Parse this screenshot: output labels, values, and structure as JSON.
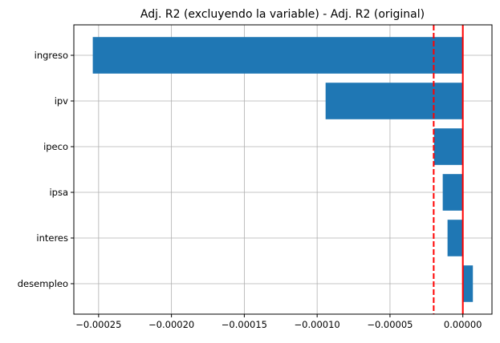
{
  "chart_data": {
    "type": "bar",
    "orientation": "horizontal",
    "title": "Adj. R2 (excluyendo la variable) - Adj. R2 (original)",
    "xlabel": "",
    "ylabel": "",
    "categories": [
      "ingreso",
      "ipv",
      "ipeco",
      "ipsa",
      "interes",
      "desempleo"
    ],
    "values": [
      -0.000254,
      -9.42e-05,
      -1.98e-05,
      -1.38e-05,
      -1.05e-05,
      6.9e-06
    ],
    "xlim": [
      -0.000267,
      2e-05
    ],
    "xticks": [
      -0.00025,
      -0.0002,
      -0.00015,
      -0.0001,
      -5e-05,
      0
    ],
    "xtick_labels": [
      "−0.00025",
      "−0.00020",
      "−0.00015",
      "−0.00010",
      "−0.00005",
      "0.00000"
    ],
    "reference_lines": [
      {
        "x": 0,
        "style": "solid",
        "color": "#ff0000"
      },
      {
        "x": -2e-05,
        "style": "dashed",
        "color": "#ff0000"
      }
    ],
    "grid": true,
    "bar_color": "#1f77b4"
  }
}
